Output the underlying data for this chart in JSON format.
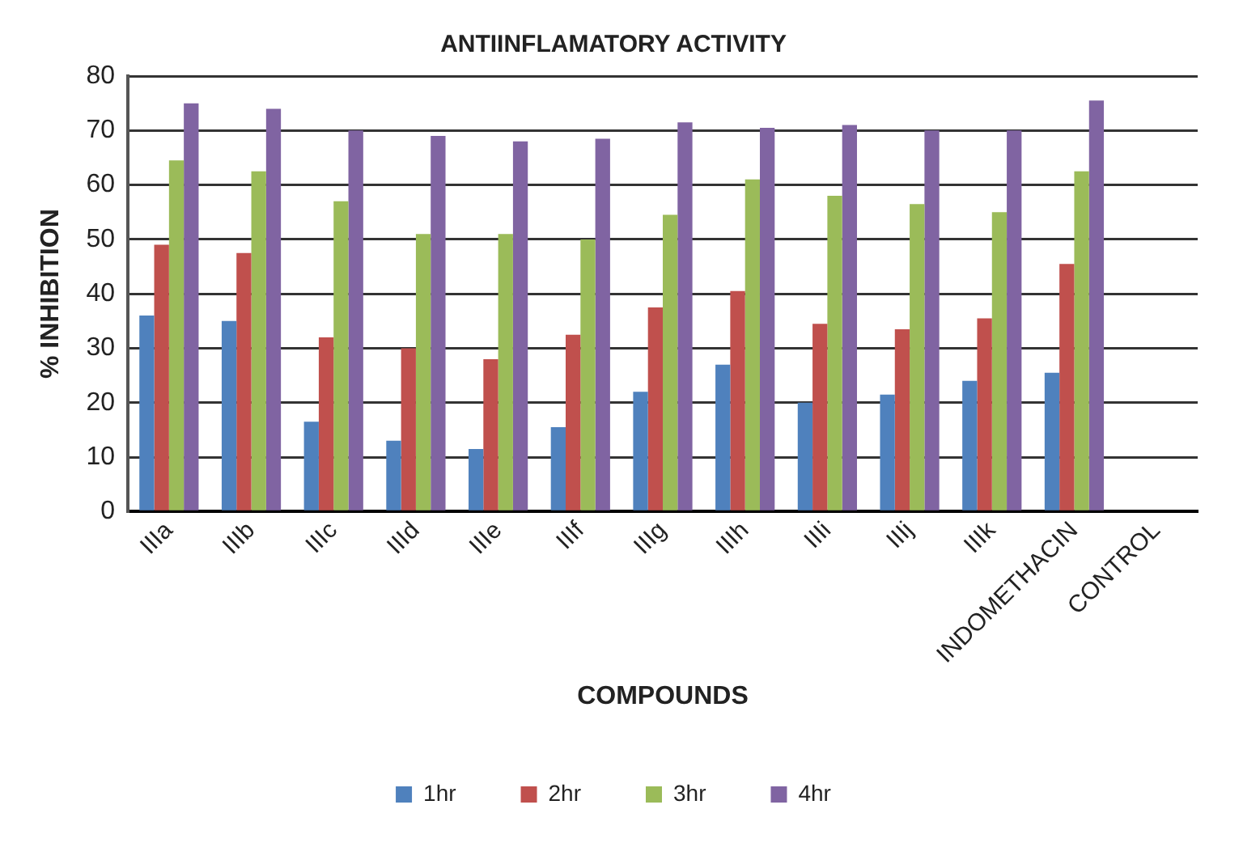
{
  "chart_data": {
    "type": "bar",
    "title": "ANTIINFLAMATORY ACTIVITY",
    "xlabel": "COMPOUNDS",
    "ylabel": "% INHIBITION",
    "categories": [
      "IIIa",
      "IIIb",
      "IIIc",
      "IIId",
      "IIIe",
      "IIIf",
      "IIIg",
      "IIIh",
      "IIIi",
      "IIIj",
      "IIIk",
      "INDOMETHACIN",
      "CONTROL"
    ],
    "series": [
      {
        "name": "1hr",
        "color": "#4f81bd",
        "values": [
          36,
          35,
          16.5,
          13,
          11.5,
          15.5,
          22,
          27,
          20,
          21.5,
          24,
          25.5,
          null
        ]
      },
      {
        "name": "2hr",
        "color": "#c0504d",
        "values": [
          49,
          47.5,
          32,
          30,
          28,
          32.5,
          37.5,
          40.5,
          34.5,
          33.5,
          35.5,
          45.5,
          null
        ]
      },
      {
        "name": "3hr",
        "color": "#9bbb59",
        "values": [
          64.5,
          62.5,
          57,
          51,
          51,
          50,
          54.5,
          61,
          58,
          56.5,
          55,
          62.5,
          null
        ]
      },
      {
        "name": "4hr",
        "color": "#8064a2",
        "values": [
          75,
          74,
          70,
          69,
          68,
          68.5,
          71.5,
          70.5,
          71,
          70,
          70,
          75.5,
          null
        ]
      }
    ],
    "ylim": [
      0,
      80
    ],
    "yticks": [
      0,
      10,
      20,
      30,
      40,
      50,
      60,
      70,
      80
    ],
    "grid": "y",
    "legend": "bottom"
  }
}
